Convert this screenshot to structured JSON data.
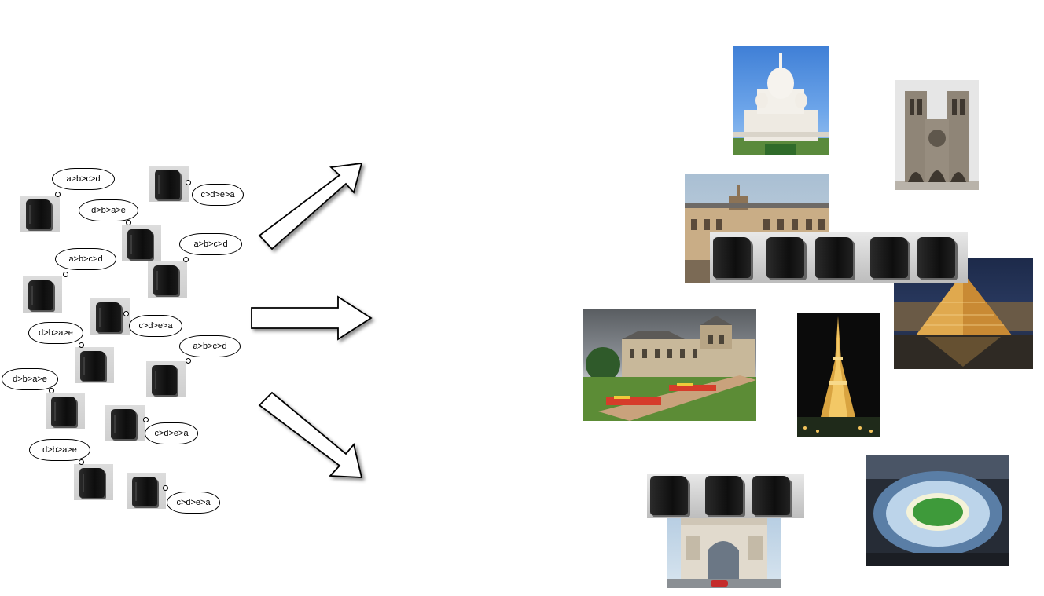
{
  "thoughts": {
    "t1": "a>b>c>d",
    "t2": "c>d>e>a",
    "t3": "d>b>a>e",
    "t4": "a>b>c>d",
    "t5": "a>b>c>d",
    "t6": "c>d>e>a",
    "t7": "d>b>a>e",
    "t8": "a>b>c>d",
    "t9": "d>b>a>e",
    "t10": "c>d>e>a",
    "t11": "d>b>a>e",
    "t12": "c>d>e>a"
  },
  "icons": {
    "agent": "voting-machine-icon",
    "arrows": [
      "arrow-up-right-icon",
      "arrow-right-icon",
      "arrow-down-right-icon"
    ]
  },
  "landmarks": [
    "sacre-coeur-photo",
    "notre-dame-photo",
    "musee-dorsay-photo",
    "louvre-pyramid-photo",
    "luxembourg-palace-photo",
    "eiffel-tower-photo",
    "stade-de-france-photo",
    "arc-de-triomphe-photo"
  ]
}
